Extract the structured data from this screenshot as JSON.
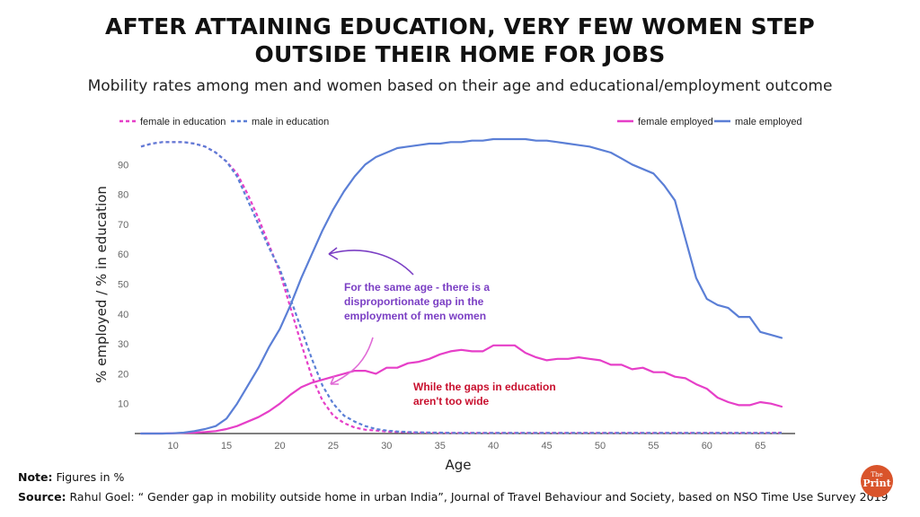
{
  "header": {
    "title_line1": "AFTER ATTAINING EDUCATION, VERY FEW WOMEN STEP",
    "title_line2": "OUTSIDE THEIR HOME FOR JOBS",
    "subtitle": "Mobility rates among men and women based on their age and educational/employment outcome"
  },
  "footer": {
    "note_label": "Note:",
    "note_text": " Figures in %",
    "source_label": "Source:",
    "source_text": " Rahul Goel: “ Gender gap in mobility outside home in urban India”, Journal of Travel Behaviour and Society, based on NSO Time Use Survey 2019",
    "logo_the": "The",
    "logo_print": "Print"
  },
  "colors": {
    "female": "#e63fc8",
    "male": "#5b7fd6",
    "annotation_purple": "#7b3fc4",
    "annotation_red": "#c8102e",
    "logo": "#d9542b"
  },
  "chart_data": {
    "type": "line",
    "xlabel": "Age",
    "ylabel": "% employed / % in education",
    "xlim": [
      7,
      67
    ],
    "ylim": [
      0,
      100
    ],
    "x_ticks": [
      10,
      15,
      20,
      25,
      30,
      35,
      40,
      45,
      50,
      55,
      60,
      65
    ],
    "y_ticks": [
      10,
      20,
      30,
      40,
      50,
      60,
      70,
      80,
      90
    ],
    "legend_left": [
      "female in education",
      "male in education"
    ],
    "legend_right": [
      "female employed",
      "male employed"
    ],
    "series": [
      {
        "name": "female in education",
        "style": "dashed",
        "color_key": "female",
        "x": [
          7,
          8,
          9,
          10,
          11,
          12,
          13,
          14,
          15,
          16,
          17,
          18,
          19,
          20,
          21,
          22,
          23,
          24,
          25,
          26,
          27,
          28,
          29,
          30,
          31,
          32,
          33,
          34,
          35,
          36,
          37,
          38,
          39,
          40,
          41,
          42,
          43,
          44,
          45,
          46,
          47,
          48,
          49,
          50,
          51,
          52,
          53,
          54,
          55,
          56,
          57,
          58,
          59,
          60,
          61,
          62,
          63,
          64,
          65,
          66,
          67
        ],
        "values": [
          96,
          97,
          97.5,
          97.5,
          97.5,
          97,
          96,
          94,
          91,
          87,
          80,
          72,
          63,
          54,
          42,
          30,
          19,
          11,
          6,
          3.5,
          2,
          1.3,
          1,
          0.7,
          0.5,
          0.4,
          0.3,
          0.3,
          0.2,
          0.2,
          0.2,
          0.2,
          0.2,
          0.2,
          0.2,
          0.2,
          0.2,
          0.2,
          0.2,
          0.2,
          0.2,
          0.2,
          0.2,
          0.2,
          0.2,
          0.2,
          0.2,
          0.2,
          0.2,
          0.2,
          0.2,
          0.2,
          0.2,
          0.2,
          0.2,
          0.2,
          0.2,
          0.2,
          0.2,
          0.2,
          0.3
        ]
      },
      {
        "name": "male in education",
        "style": "dashed",
        "color_key": "male",
        "x": [
          7,
          8,
          9,
          10,
          11,
          12,
          13,
          14,
          15,
          16,
          17,
          18,
          19,
          20,
          21,
          22,
          23,
          24,
          25,
          26,
          27,
          28,
          29,
          30,
          31,
          32,
          33,
          34,
          35,
          36,
          37,
          38,
          39,
          40,
          41,
          42,
          43,
          44,
          45,
          46,
          47,
          48,
          49,
          50,
          51,
          52,
          53,
          54,
          55,
          56,
          57,
          58,
          59,
          60,
          61,
          62,
          63,
          64,
          65,
          66,
          67
        ],
        "values": [
          96,
          97,
          97.5,
          97.5,
          97.5,
          97,
          96,
          94,
          91,
          86,
          78,
          70,
          62,
          55,
          45,
          35,
          25,
          16,
          10,
          6,
          4,
          2.5,
          1.5,
          1,
          0.7,
          0.5,
          0.4,
          0.3,
          0.3,
          0.2,
          0.2,
          0.2,
          0.2,
          0.2,
          0.2,
          0.2,
          0.2,
          0.2,
          0.2,
          0.2,
          0.2,
          0.2,
          0.2,
          0.2,
          0.2,
          0.2,
          0.2,
          0.2,
          0.2,
          0.2,
          0.2,
          0.2,
          0.2,
          0.2,
          0.2,
          0.2,
          0.2,
          0.2,
          0.2,
          0.2,
          0.2
        ]
      },
      {
        "name": "female employed",
        "style": "solid",
        "color_key": "female",
        "x": [
          7,
          8,
          9,
          10,
          11,
          12,
          13,
          14,
          15,
          16,
          17,
          18,
          19,
          20,
          21,
          22,
          23,
          24,
          25,
          26,
          27,
          28,
          29,
          30,
          31,
          32,
          33,
          34,
          35,
          36,
          37,
          38,
          39,
          40,
          41,
          42,
          43,
          44,
          45,
          46,
          47,
          48,
          49,
          50,
          51,
          52,
          53,
          54,
          55,
          56,
          57,
          58,
          59,
          60,
          61,
          62,
          63,
          64,
          65,
          66,
          67
        ],
        "values": [
          0,
          0,
          0,
          0.1,
          0.2,
          0.3,
          0.5,
          0.8,
          1.5,
          2.5,
          4,
          5.5,
          7.5,
          10,
          13,
          15.5,
          17,
          18,
          19,
          20,
          21,
          21,
          20,
          22,
          22,
          23.5,
          24,
          25,
          26.5,
          27.5,
          28,
          27.5,
          27.5,
          29.5,
          29.5,
          29.5,
          27,
          25.5,
          24.5,
          25,
          25,
          25.5,
          25,
          24.5,
          23,
          23,
          21.5,
          22,
          20.5,
          20.5,
          19,
          18.5,
          16.5,
          15,
          12,
          10.5,
          9.5,
          9.5,
          10.5,
          10,
          9
        ]
      },
      {
        "name": "male employed",
        "style": "solid",
        "color_key": "male",
        "x": [
          7,
          8,
          9,
          10,
          11,
          12,
          13,
          14,
          15,
          16,
          17,
          18,
          19,
          20,
          21,
          22,
          23,
          24,
          25,
          26,
          27,
          28,
          29,
          30,
          31,
          32,
          33,
          34,
          35,
          36,
          37,
          38,
          39,
          40,
          41,
          42,
          43,
          44,
          45,
          46,
          47,
          48,
          49,
          50,
          51,
          52,
          53,
          54,
          55,
          56,
          57,
          58,
          59,
          60,
          61,
          62,
          63,
          64,
          65,
          66,
          67
        ],
        "values": [
          0,
          0,
          0,
          0.1,
          0.3,
          0.8,
          1.5,
          2.5,
          5,
          10,
          16,
          22,
          29,
          35,
          43,
          52,
          60,
          68,
          75,
          81,
          86,
          90,
          92.5,
          94,
          95.5,
          96,
          96.5,
          97,
          97,
          97.5,
          97.5,
          98,
          98,
          98.5,
          98.5,
          98.5,
          98.5,
          98,
          98,
          97.5,
          97,
          96.5,
          96,
          95,
          94,
          92,
          90,
          88.5,
          87,
          83,
          78,
          65,
          52,
          45,
          43,
          42,
          39,
          39,
          34,
          33,
          32
        ]
      }
    ],
    "annotations": [
      {
        "text_lines": [
          "For the same age - there is a",
          "disproportionate gap in the",
          "employment of men women"
        ],
        "color_key": "annotation_purple"
      },
      {
        "text_lines": [
          "While the gaps in education",
          "aren't too wide"
        ],
        "color_key": "annotation_red"
      }
    ]
  }
}
